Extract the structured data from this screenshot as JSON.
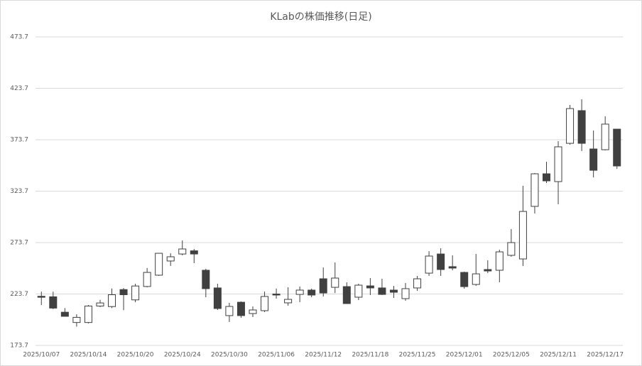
{
  "chart_data": {
    "type": "candlestick",
    "title": "KLabの株価推移(日足)",
    "categories": [
      "2025/10/07",
      null,
      null,
      null,
      "2025/10/14",
      null,
      null,
      null,
      "2025/10/20",
      null,
      null,
      null,
      "2025/10/24",
      null,
      null,
      null,
      "2025/10/30",
      null,
      null,
      null,
      "2025/11/06",
      null,
      null,
      null,
      "2025/11/12",
      null,
      null,
      null,
      "2025/11/18",
      null,
      null,
      null,
      "2025/11/25",
      null,
      null,
      null,
      "2025/12/01",
      null,
      null,
      null,
      "2025/12/05",
      null,
      null,
      null,
      "2025/12/11",
      null,
      null,
      null,
      "2025/12/17",
      null
    ],
    "open": [
      221.5,
      221,
      206,
      196,
      196,
      212,
      211.5,
      228,
      218,
      231,
      242,
      255.8,
      262.6,
      265.7,
      246.8,
      229.6,
      202.7,
      215.7,
      204.7,
      207.5,
      223.7,
      215.1,
      223.3,
      227.5,
      238.5,
      230.2,
      230.9,
      220.6,
      231.6,
      229.6,
      227.5,
      219.2,
      229.6,
      244,
      262.6,
      250.3,
      244.7,
      233,
      247.5,
      246.8,
      261.3,
      257.8,
      308.9,
      340.6,
      333,
      370.2,
      402,
      364.7,
      364,
      384
    ],
    "high": [
      226,
      226,
      210,
      204,
      213,
      218,
      229,
      229.5,
      233.7,
      249,
      263.5,
      263.3,
      275.8,
      267.5,
      248.2,
      233.7,
      215.1,
      216.5,
      211.6,
      226.1,
      229,
      230.2,
      230.9,
      228.9,
      249.5,
      254.4,
      235.1,
      233.7,
      239.2,
      238.5,
      231.6,
      234.4,
      241.3,
      265.4,
      268.2,
      261.3,
      245.4,
      262.7,
      256.5,
      266.8,
      286.8,
      328.9,
      341.3,
      352.3,
      372.3,
      407.5,
      413,
      382.7,
      396.5,
      384
    ],
    "low": [
      213,
      209,
      202,
      192,
      195,
      211,
      210,
      208,
      215.7,
      230.2,
      241.3,
      251,
      261.3,
      253.7,
      220.6,
      208.2,
      196.5,
      200.6,
      201.3,
      206.1,
      219.2,
      212.3,
      215.8,
      220.6,
      221.3,
      224.7,
      214.4,
      217.8,
      222.7,
      222.7,
      219.9,
      217.1,
      226.8,
      241.3,
      241.3,
      246.8,
      228.9,
      231.6,
      244,
      235.1,
      259.9,
      250.9,
      302,
      331.6,
      310.9,
      368.9,
      362.7,
      337.1,
      363.3,
      345.4
    ],
    "close": [
      220.5,
      210,
      202,
      201,
      212,
      215,
      223,
      223,
      231.5,
      244.7,
      263.3,
      259.9,
      267.5,
      262.6,
      228.9,
      209.6,
      211.6,
      202.7,
      208.2,
      221.3,
      222.7,
      218.5,
      227.5,
      222.7,
      224.7,
      239.2,
      214.4,
      232.3,
      229.6,
      223.3,
      225.4,
      228.9,
      238.5,
      260.6,
      247.5,
      248.9,
      230.9,
      243.3,
      246.1,
      264.7,
      273.7,
      304,
      340.6,
      333.7,
      366.8,
      404,
      370.2,
      344,
      388.9,
      348.2
    ],
    "up_color": "#ffffff",
    "down_color": "#404040",
    "edge_color": "#404040",
    "ylim": [
      173.7,
      473.7
    ],
    "yticks": [
      173.7,
      223.7,
      273.7,
      323.7,
      373.7,
      423.7,
      473.7
    ],
    "grid": true
  }
}
